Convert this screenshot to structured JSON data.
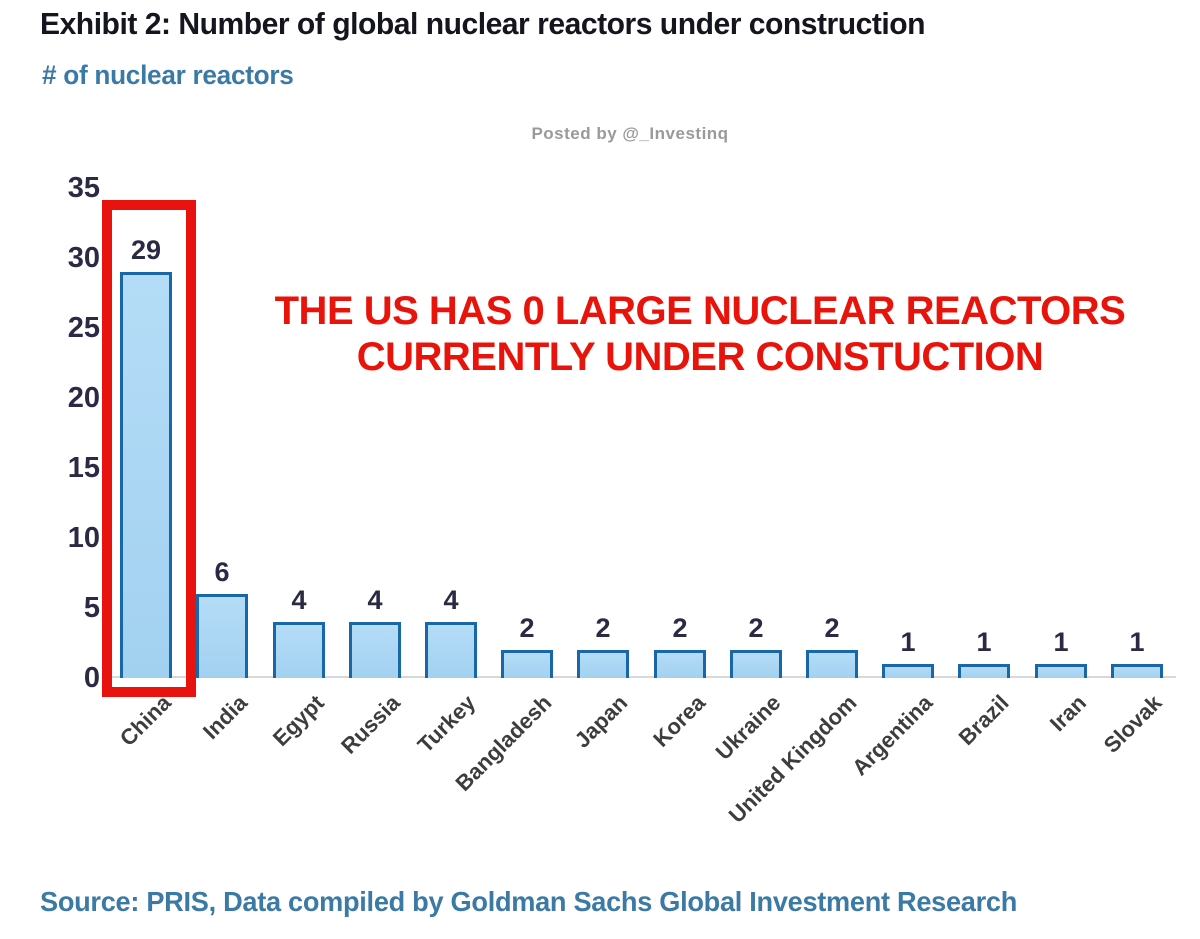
{
  "header": {
    "title": "Exhibit 2: Number of global nuclear reactors under construction",
    "subtitle": "# of nuclear reactors",
    "watermark": "Posted by @_Investinq"
  },
  "annotation": {
    "lines": [
      "THE US HAS 0 LARGE NUCLEAR REACTORS",
      "CURRENTLY UNDER CONSTUCTION"
    ],
    "color": "#e8140c"
  },
  "chart_data": {
    "type": "bar",
    "title": "Exhibit 2: Number of global nuclear reactors under construction",
    "ylabel": "# of nuclear reactors",
    "xlabel": "",
    "categories": [
      "China",
      "India",
      "Egypt",
      "Russia",
      "Turkey",
      "Bangladesh",
      "Japan",
      "Korea",
      "Ukraine",
      "United Kingdom",
      "Argentina",
      "Brazil",
      "Iran",
      "Slovak"
    ],
    "values": [
      29,
      6,
      4,
      4,
      4,
      2,
      2,
      2,
      2,
      2,
      1,
      1,
      1,
      1
    ],
    "ylim": [
      0,
      35
    ],
    "yticks": [
      0,
      5,
      10,
      15,
      20,
      25,
      30,
      35
    ],
    "grid": false,
    "legend": null,
    "value_labels_shown": true,
    "colors": {
      "bar_fill_top": "#b4dcf7",
      "bar_fill_bottom": "#a2d1f0",
      "bar_border": "#1a67a8",
      "tick_label": "#2a2a45",
      "value_label": "#2a2a45",
      "category_label": "#3d3d3d",
      "axis_line": "#d8d8d8",
      "highlight_box": "#e8130e"
    },
    "highlight": {
      "category": "China",
      "note": "red box drawn around China bar"
    }
  },
  "footer": {
    "source": "Source: PRIS, Data compiled by Goldman Sachs Global Investment Research"
  }
}
